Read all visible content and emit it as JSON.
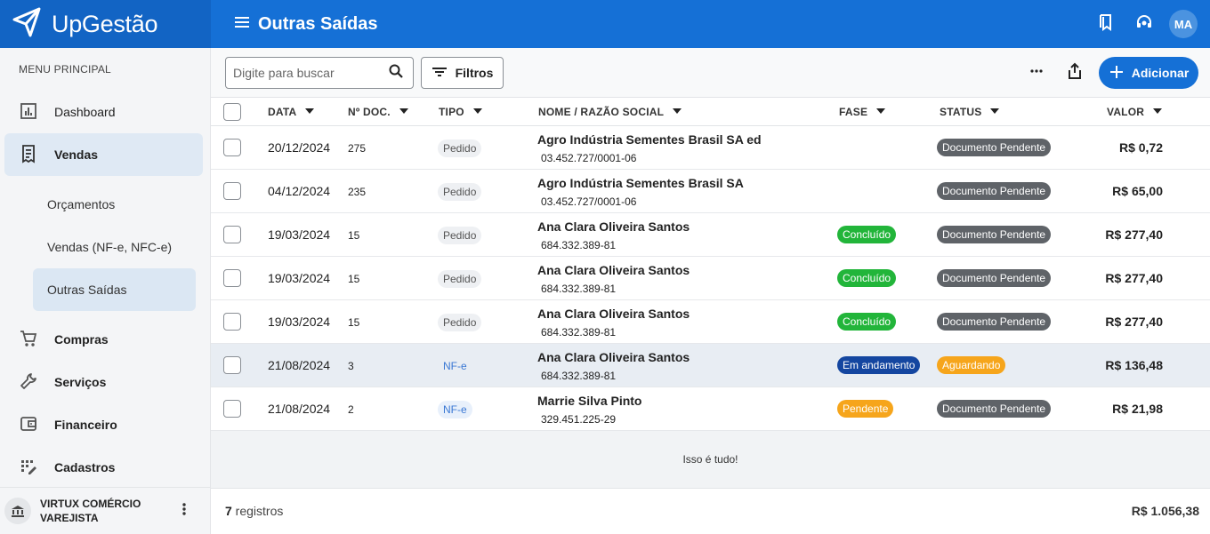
{
  "app": {
    "name": "UpGestão",
    "page_title": "Outras Saídas",
    "user_initials": "MA"
  },
  "sidebar": {
    "heading": "MENU PRINCIPAL",
    "items": [
      {
        "label": "Dashboard",
        "icon": "dashboard-icon"
      },
      {
        "label": "Vendas",
        "icon": "receipt-icon",
        "active": true
      },
      {
        "label": "Compras",
        "icon": "cart-icon"
      },
      {
        "label": "Serviços",
        "icon": "wrench-icon"
      },
      {
        "label": "Financeiro",
        "icon": "wallet-icon"
      },
      {
        "label": "Cadastros",
        "icon": "edit-list-icon"
      }
    ],
    "sub_items": [
      {
        "label": "Orçamentos"
      },
      {
        "label": "Vendas (NF-e, NFC-e)"
      },
      {
        "label": "Outras Saídas",
        "active": true
      }
    ],
    "company": "VIRTUX COMÉRCIO VAREJISTA"
  },
  "toolbar": {
    "search_placeholder": "Digite para buscar",
    "filters_label": "Filtros",
    "add_label": "Adicionar"
  },
  "table": {
    "columns": [
      "DATA",
      "Nº DOC.",
      "TIPO",
      "NOME / RAZÃO SOCIAL",
      "FASE",
      "STATUS",
      "VALOR"
    ],
    "rows": [
      {
        "date": "20/12/2024",
        "doc": "275",
        "type": "Pedido",
        "name": "Agro Indústria Sementes Brasil SA ed",
        "id": "03.452.727/0001-06",
        "phase": "",
        "status": "Documento Pendente",
        "value": "R$ 0,72"
      },
      {
        "date": "04/12/2024",
        "doc": "235",
        "type": "Pedido",
        "name": "Agro Indústria Sementes Brasil SA",
        "id": "03.452.727/0001-06",
        "phase": "",
        "status": "Documento Pendente",
        "value": "R$ 65,00"
      },
      {
        "date": "19/03/2024",
        "doc": "15",
        "type": "Pedido",
        "name": "Ana Clara Oliveira Santos",
        "id": "684.332.389-81",
        "phase": "Concluído",
        "status": "Documento Pendente",
        "value": "R$ 277,40"
      },
      {
        "date": "19/03/2024",
        "doc": "15",
        "type": "Pedido",
        "name": "Ana Clara Oliveira Santos",
        "id": "684.332.389-81",
        "phase": "Concluído",
        "status": "Documento Pendente",
        "value": "R$ 277,40"
      },
      {
        "date": "19/03/2024",
        "doc": "15",
        "type": "Pedido",
        "name": "Ana Clara Oliveira Santos",
        "id": "684.332.389-81",
        "phase": "Concluído",
        "status": "Documento Pendente",
        "value": "R$ 277,40"
      },
      {
        "date": "21/08/2024",
        "doc": "3",
        "type": "NF-e",
        "name": "Ana Clara Oliveira Santos",
        "id": "684.332.389-81",
        "phase": "Em andamento",
        "status": "Aguardando",
        "value": "R$ 136,48"
      },
      {
        "date": "21/08/2024",
        "doc": "2",
        "type": "NF-e",
        "name": "Marrie Silva Pinto",
        "id": "329.451.225-29",
        "phase": "Pendente",
        "status": "Documento Pendente",
        "value": "R$ 21,98"
      }
    ],
    "end_message": "Isso é tudo!"
  },
  "footer": {
    "count_number": "7",
    "count_label": " registros",
    "total": "R$ 1.056,38"
  },
  "colors": {
    "brand": "#1570d6",
    "phase_concluido": "#22b53a",
    "phase_em_andamento": "#1446a0",
    "phase_pendente": "#f6a51b",
    "status_documento_pendente": "#5f6368",
    "status_aguardando": "#f6a51b"
  }
}
